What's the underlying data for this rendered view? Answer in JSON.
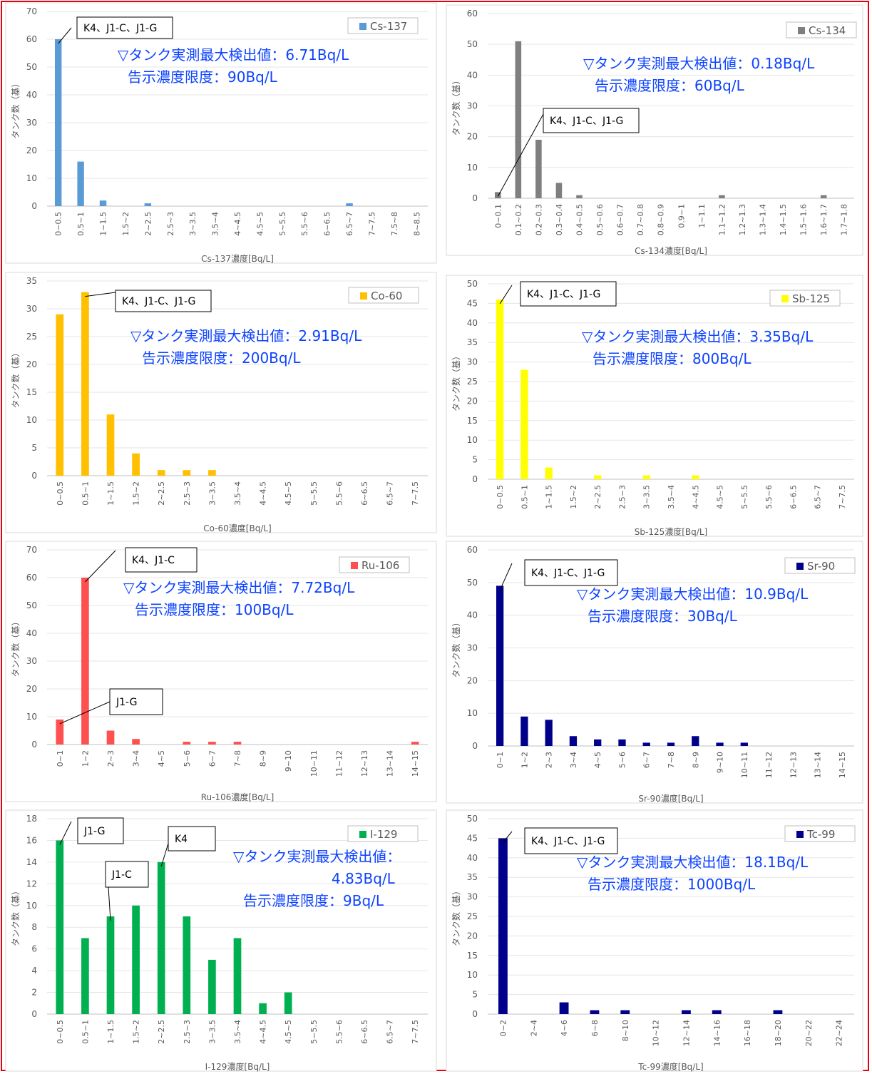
{
  "chart_data": [
    {
      "type": "bar",
      "legend": "Cs-137",
      "color": "#5b9bd5",
      "ylabel": "タンク数（基）",
      "xlabel": "Cs-137濃度[Bq/L]",
      "ylim": [
        0,
        70
      ],
      "yticks": [
        0,
        10,
        20,
        30,
        40,
        50,
        60,
        70
      ],
      "categories": [
        "0~0.5",
        "0.5~1",
        "1~1.5",
        "1.5~2",
        "2~2.5",
        "2.5~3",
        "3~3.5",
        "3.5~4",
        "4~4.5",
        "4.5~5",
        "5~5.5",
        "5.5~6",
        "6~6.5",
        "6.5~7",
        "7~7.5",
        "7.5~8",
        "8~8.5"
      ],
      "values": [
        60,
        16,
        2,
        0,
        1,
        0,
        0,
        0,
        0,
        0,
        0,
        0,
        0,
        1,
        0,
        0,
        0
      ],
      "note_lines": [
        "▽タンク実測最大検出値：6.71Bq/L",
        "告示濃度限度：90Bq/L"
      ],
      "callouts": [
        {
          "text": "K4、J1-C、J1-G",
          "bar": 0
        }
      ]
    },
    {
      "type": "bar",
      "legend": "Cs-134",
      "color": "#7f7f7f",
      "ylabel": "タンク数（基）",
      "xlabel": "Cs-134濃度[Bq/L]",
      "ylim": [
        0,
        60
      ],
      "yticks": [
        0,
        10,
        20,
        30,
        40,
        50,
        60
      ],
      "categories": [
        "0~0.1",
        "0.1~0.2",
        "0.2~0.3",
        "0.3~0.4",
        "0.4~0.5",
        "0.5~0.6",
        "0.6~0.7",
        "0.7~0.8",
        "0.8~0.9",
        "0.9~1",
        "1~1.1",
        "1.1~1.2",
        "1.2~1.3",
        "1.3~1.4",
        "1.4~1.5",
        "1.5~1.6",
        "1.6~1.7",
        "1.7~1.8"
      ],
      "values": [
        2,
        51,
        19,
        5,
        1,
        0,
        0,
        0,
        0,
        0,
        0,
        1,
        0,
        0,
        0,
        0,
        1,
        0
      ],
      "note_lines": [
        "▽タンク実測最大検出値：0.18Bq/L",
        "告示濃度限度：60Bq/L"
      ],
      "callouts": [
        {
          "text": "K4、J1-C、J1-G",
          "bar": 0
        }
      ]
    },
    {
      "type": "bar",
      "legend": "Co-60",
      "color": "#ffc000",
      "ylabel": "タンク数（基）",
      "xlabel": "Co-60濃度[Bq/L]",
      "ylim": [
        0,
        35
      ],
      "yticks": [
        0,
        5,
        10,
        15,
        20,
        25,
        30,
        35
      ],
      "categories": [
        "0~0.5",
        "0.5~1",
        "1~1.5",
        "1.5~2",
        "2~2.5",
        "2.5~3",
        "3~3.5",
        "3.5~4",
        "4~4.5",
        "4.5~5",
        "5~5.5",
        "5.5~6",
        "6~6.5",
        "6.5~7",
        "7~7.5"
      ],
      "values": [
        29,
        33,
        11,
        4,
        1,
        1,
        1,
        0,
        0,
        0,
        0,
        0,
        0,
        0,
        0
      ],
      "note_lines": [
        "▽タンク実測最大検出値：2.91Bq/L",
        "告示濃度限度：200Bq/L"
      ],
      "callouts": [
        {
          "text": "K4、J1-C、J1-G",
          "bar": 1
        }
      ]
    },
    {
      "type": "bar",
      "legend": "Sb-125",
      "color": "#ffff00",
      "ylabel": "タンク数（基）",
      "xlabel": "Sb-125濃度[Bq/L]",
      "ylim": [
        0,
        50
      ],
      "yticks": [
        0,
        5,
        10,
        15,
        20,
        25,
        30,
        35,
        40,
        45,
        50
      ],
      "categories": [
        "0~0.5",
        "0.5~1",
        "1~1.5",
        "1.5~2",
        "2~2.5",
        "2.5~3",
        "3~3.5",
        "3.5~4",
        "4~4.5",
        "4.5~5",
        "5~5.5",
        "5.5~6",
        "6~6.5",
        "6.5~7",
        "7~7.5"
      ],
      "values": [
        46,
        28,
        3,
        0,
        1,
        0,
        1,
        0,
        1,
        0,
        0,
        0,
        0,
        0,
        0
      ],
      "note_lines": [
        "▽タンク実測最大検出値：3.35Bq/L",
        "告示濃度限度：800Bq/L"
      ],
      "callouts": [
        {
          "text": "K4、J1-C、J1-G",
          "bar": 0
        }
      ]
    },
    {
      "type": "bar",
      "legend": "Ru-106",
      "color": "#ff5050",
      "ylabel": "タンク数（基）",
      "xlabel": "Ru-106濃度[Bq/L]",
      "ylim": [
        0,
        70
      ],
      "yticks": [
        0,
        10,
        20,
        30,
        40,
        50,
        60,
        70
      ],
      "categories": [
        "0~1",
        "1~2",
        "2~3",
        "3~4",
        "4~5",
        "5~6",
        "6~7",
        "7~8",
        "8~9",
        "9~10",
        "10~11",
        "11~12",
        "12~13",
        "13~14",
        "14~15"
      ],
      "values": [
        9,
        60,
        5,
        2,
        0,
        1,
        1,
        1,
        0,
        0,
        0,
        0,
        0,
        0,
        1
      ],
      "note_lines": [
        "▽タンク実測最大検出値：7.72Bq/L",
        "告示濃度限度：100Bq/L"
      ],
      "callouts": [
        {
          "text": "K4、J1-C",
          "bar": 1
        },
        {
          "text": "J1-G",
          "bar": 0
        }
      ]
    },
    {
      "type": "bar",
      "legend": "Sr-90",
      "color": "#00008b",
      "ylabel": "タンク数（基）",
      "xlabel": "Sr-90濃度[Bq/L]",
      "ylim": [
        0,
        60
      ],
      "yticks": [
        0,
        10,
        20,
        30,
        40,
        50,
        60
      ],
      "categories": [
        "0~1",
        "1~2",
        "2~3",
        "3~4",
        "4~5",
        "5~6",
        "6~7",
        "7~8",
        "8~9",
        "9~10",
        "10~11",
        "11~12",
        "12~13",
        "13~14",
        "14~15"
      ],
      "values": [
        49,
        9,
        8,
        3,
        2,
        2,
        1,
        1,
        3,
        1,
        1,
        0,
        0,
        0,
        0
      ],
      "note_lines": [
        "▽タンク実測最大検出値：10.9Bq/L",
        "告示濃度限度：30Bq/L"
      ],
      "callouts": [
        {
          "text": "K4、J1-C、J1-G",
          "bar": 0
        }
      ]
    },
    {
      "type": "bar",
      "legend": "I-129",
      "color": "#00b050",
      "ylabel": "タンク数（基）",
      "xlabel": "I-129濃度[Bq/L]",
      "ylim": [
        0,
        18
      ],
      "yticks": [
        0,
        2,
        4,
        6,
        8,
        10,
        12,
        14,
        16,
        18
      ],
      "categories": [
        "0~0.5",
        "0.5~1",
        "1~1.5",
        "1.5~2",
        "2~2.5",
        "2.5~3",
        "3~3.5",
        "3.5~4",
        "4~4.5",
        "4.5~5",
        "5~5.5",
        "5.5~6",
        "6~6.5",
        "6.5~7",
        "7~7.5"
      ],
      "values": [
        16,
        7,
        9,
        10,
        14,
        9,
        5,
        7,
        1,
        2,
        0,
        0,
        0,
        0,
        0
      ],
      "note_lines": [
        "▽タンク実測最大検出値：",
        "4.83Bq/L",
        "告示濃度限度：9Bq/L"
      ],
      "callouts": [
        {
          "text": "J1-G",
          "bar": 0
        },
        {
          "text": "J1-C",
          "bar": 2
        },
        {
          "text": "K4",
          "bar": 4
        }
      ]
    },
    {
      "type": "bar",
      "legend": "Tc-99",
      "color": "#00008b",
      "ylabel": "タンク数（基）",
      "xlabel": "Tc-99濃度[Bq/L]",
      "ylim": [
        0,
        50
      ],
      "yticks": [
        0,
        5,
        10,
        15,
        20,
        25,
        30,
        35,
        40,
        45,
        50
      ],
      "categories": [
        "0~2",
        "2~4",
        "4~6",
        "6~8",
        "8~10",
        "10~12",
        "12~14",
        "14~16",
        "16~18",
        "18~20",
        "20~22",
        "22~24"
      ],
      "values": [
        45,
        0,
        3,
        1,
        1,
        0,
        1,
        1,
        0,
        1,
        0,
        0
      ],
      "note_lines": [
        "▽タンク実測最大検出値：18.1Bq/L",
        "告示濃度限度：1000Bq/L"
      ],
      "callouts": [
        {
          "text": "K4、J1-C、J1-G",
          "bar": 0
        }
      ]
    }
  ]
}
